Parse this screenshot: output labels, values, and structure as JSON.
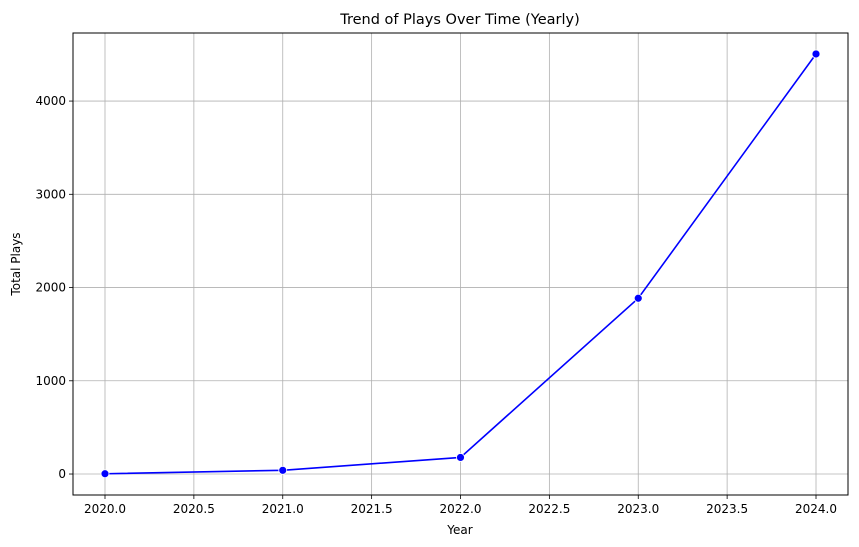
{
  "chart_data": {
    "type": "line",
    "title": "Trend of Plays Over Time (Yearly)",
    "xlabel": "Year",
    "ylabel": "Total Plays",
    "x": [
      2020,
      2021,
      2022,
      2023,
      2024
    ],
    "series": [
      {
        "values": [
          3,
          40,
          178,
          1885,
          4505
        ]
      }
    ],
    "xlim": [
      2019.82,
      2024.18
    ],
    "ylim": [
      -225,
      4730
    ],
    "xticks": [
      2020.0,
      2020.5,
      2021.0,
      2021.5,
      2022.0,
      2022.5,
      2023.0,
      2023.5,
      2024.0
    ],
    "xtick_labels": [
      "2020.0",
      "2020.5",
      "2021.0",
      "2021.5",
      "2022.0",
      "2022.5",
      "2023.0",
      "2023.5",
      "2024.0"
    ],
    "yticks": [
      0,
      1000,
      2000,
      3000,
      4000
    ],
    "ytick_labels": [
      "0",
      "1000",
      "2000",
      "3000",
      "4000"
    ],
    "grid": true,
    "line_color": "#0000ff",
    "marker": "circle"
  }
}
